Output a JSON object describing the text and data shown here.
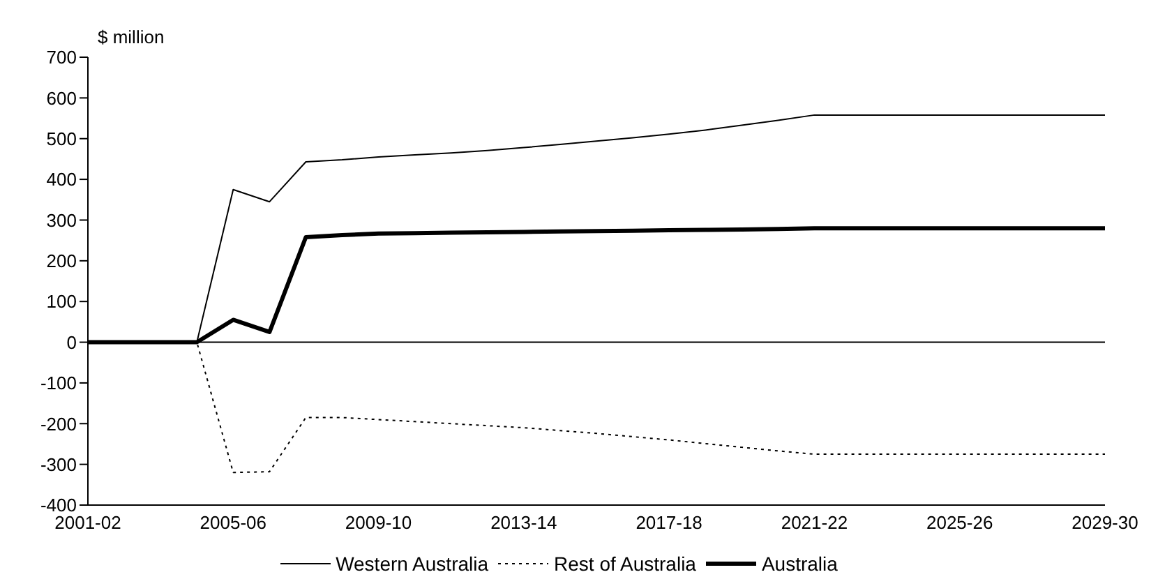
{
  "chart_data": {
    "type": "line",
    "ylabel": "$ million",
    "categories": [
      "2001-02",
      null,
      null,
      null,
      "2005-06",
      null,
      null,
      null,
      "2009-10",
      null,
      null,
      null,
      "2013-14",
      null,
      null,
      null,
      "2017-18",
      null,
      null,
      null,
      "2021-22",
      null,
      null,
      null,
      "2025-26",
      null,
      null,
      null,
      "2029-30"
    ],
    "series": [
      {
        "name": "Western Australia",
        "color": "#000000",
        "line_style": "solid",
        "values": [
          0,
          0,
          0,
          0,
          375,
          345,
          443,
          448,
          455,
          460,
          465,
          471,
          478,
          486,
          494,
          502,
          511,
          521,
          533,
          545,
          558,
          558,
          558,
          558,
          558,
          558,
          558,
          558,
          558
        ]
      },
      {
        "name": "Rest of Australia",
        "color": "#000000",
        "line_style": "dotted",
        "values": [
          0,
          0,
          0,
          0,
          -320,
          -318,
          -185,
          -185,
          -190,
          -195,
          -200,
          -205,
          -210,
          -217,
          -224,
          -232,
          -240,
          -249,
          -258,
          -267,
          -275,
          -275,
          -275,
          -275,
          -275,
          -275,
          -275,
          -275,
          -275
        ]
      },
      {
        "name": "Australia",
        "color": "#000000",
        "line_style": "solid",
        "values": [
          0,
          0,
          0,
          0,
          55,
          25,
          258,
          263,
          267,
          268,
          269,
          270,
          271,
          272,
          273,
          274,
          275,
          276,
          277,
          278,
          280,
          280,
          280,
          280,
          280,
          280,
          280,
          280,
          280
        ]
      }
    ],
    "ylim": [
      -400,
      700
    ],
    "yticks": [
      -400,
      -300,
      -200,
      -100,
      0,
      100,
      200,
      300,
      400,
      500,
      600,
      700
    ],
    "ref_lines": [
      {
        "axis": "y",
        "value": 0,
        "color": "#000000"
      }
    ],
    "legend": "bottom",
    "marker": "none"
  }
}
